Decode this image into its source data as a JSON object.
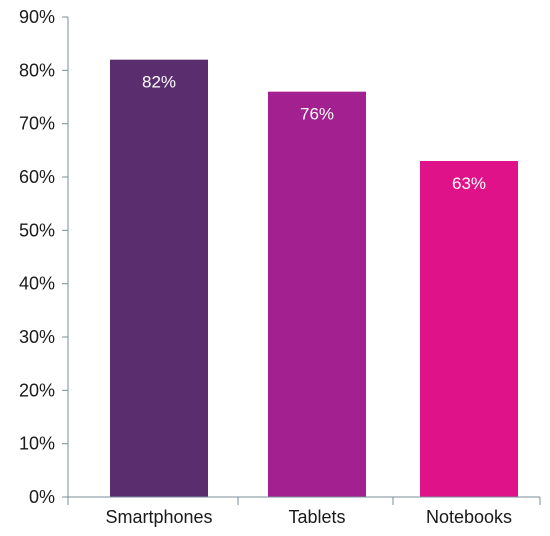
{
  "chart_data": {
    "type": "bar",
    "categories": [
      "Smartphones",
      "Tablets",
      "Notebooks"
    ],
    "values": [
      82,
      76,
      63
    ],
    "data_labels": [
      "82%",
      "76%",
      "63%"
    ],
    "bar_colors": [
      "#5a2d6e",
      "#a2208f",
      "#e0128a"
    ],
    "ylim": [
      0,
      90
    ],
    "yticks": [
      0,
      10,
      20,
      30,
      40,
      50,
      60,
      70,
      80,
      90
    ],
    "ytick_labels": [
      "0%",
      "10%",
      "20%",
      "30%",
      "40%",
      "50%",
      "60%",
      "70%",
      "80%",
      "90%"
    ],
    "grid": false,
    "legend": "none",
    "title": "",
    "xlabel": "",
    "ylabel": ""
  }
}
